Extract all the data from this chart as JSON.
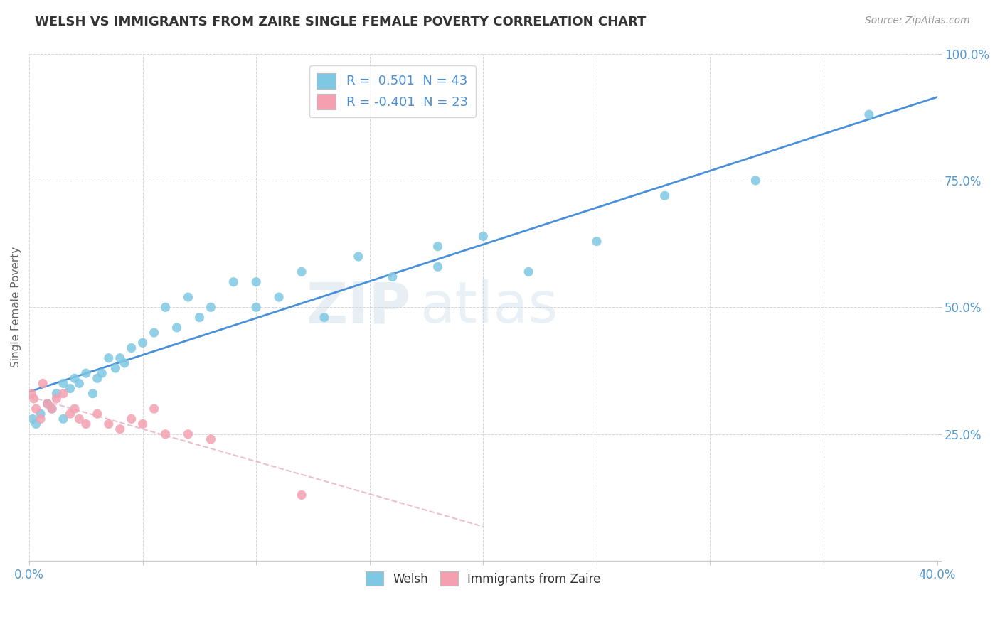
{
  "title": "WELSH VS IMMIGRANTS FROM ZAIRE SINGLE FEMALE POVERTY CORRELATION CHART",
  "source": "Source: ZipAtlas.com",
  "ylabel": "Single Female Poverty",
  "welsh_color": "#7ec8e3",
  "zaire_color": "#f4a0b0",
  "welsh_line_color": "#4a90d9",
  "zaire_line_color": "#e8b0c0",
  "watermark_zip": "ZIP",
  "watermark_atlas": "atlas",
  "welsh_x": [
    0.15,
    0.3,
    0.5,
    0.8,
    1.0,
    1.2,
    1.5,
    1.5,
    1.8,
    2.0,
    2.2,
    2.5,
    2.8,
    3.0,
    3.2,
    3.5,
    3.8,
    4.0,
    4.2,
    4.5,
    5.0,
    5.5,
    6.0,
    6.5,
    7.0,
    7.5,
    8.0,
    9.0,
    10.0,
    11.0,
    12.0,
    13.0,
    14.5,
    16.0,
    18.0,
    20.0,
    22.0,
    25.0,
    28.0,
    32.0,
    37.0,
    10.0,
    18.0
  ],
  "welsh_y": [
    28,
    27,
    29,
    31,
    30,
    33,
    35,
    28,
    34,
    36,
    35,
    37,
    33,
    36,
    37,
    40,
    38,
    40,
    39,
    42,
    43,
    45,
    50,
    46,
    52,
    48,
    50,
    55,
    50,
    52,
    57,
    48,
    60,
    56,
    62,
    64,
    57,
    63,
    72,
    75,
    88,
    55,
    58
  ],
  "zaire_x": [
    0.1,
    0.2,
    0.3,
    0.5,
    0.6,
    0.8,
    1.0,
    1.2,
    1.5,
    1.8,
    2.0,
    2.2,
    2.5,
    3.0,
    3.5,
    4.0,
    4.5,
    5.0,
    5.5,
    6.0,
    7.0,
    8.0,
    12.0
  ],
  "zaire_y": [
    33,
    32,
    30,
    28,
    35,
    31,
    30,
    32,
    33,
    29,
    30,
    28,
    27,
    29,
    27,
    26,
    28,
    27,
    30,
    25,
    25,
    24,
    13
  ],
  "xlim": [
    0,
    40
  ],
  "ylim": [
    0,
    100
  ],
  "background_color": "#ffffff",
  "grid_color": "#cccccc",
  "yticks": [
    0,
    25,
    50,
    75,
    100
  ],
  "ytick_labels": [
    "",
    "25.0%",
    "50.0%",
    "75.0%",
    "100.0%"
  ],
  "xticks": [
    0,
    5,
    10,
    15,
    20,
    25,
    30,
    35,
    40
  ],
  "xtick_labels": [
    "0.0%",
    "",
    "",
    "",
    "",
    "",
    "",
    "",
    "40.0%"
  ]
}
